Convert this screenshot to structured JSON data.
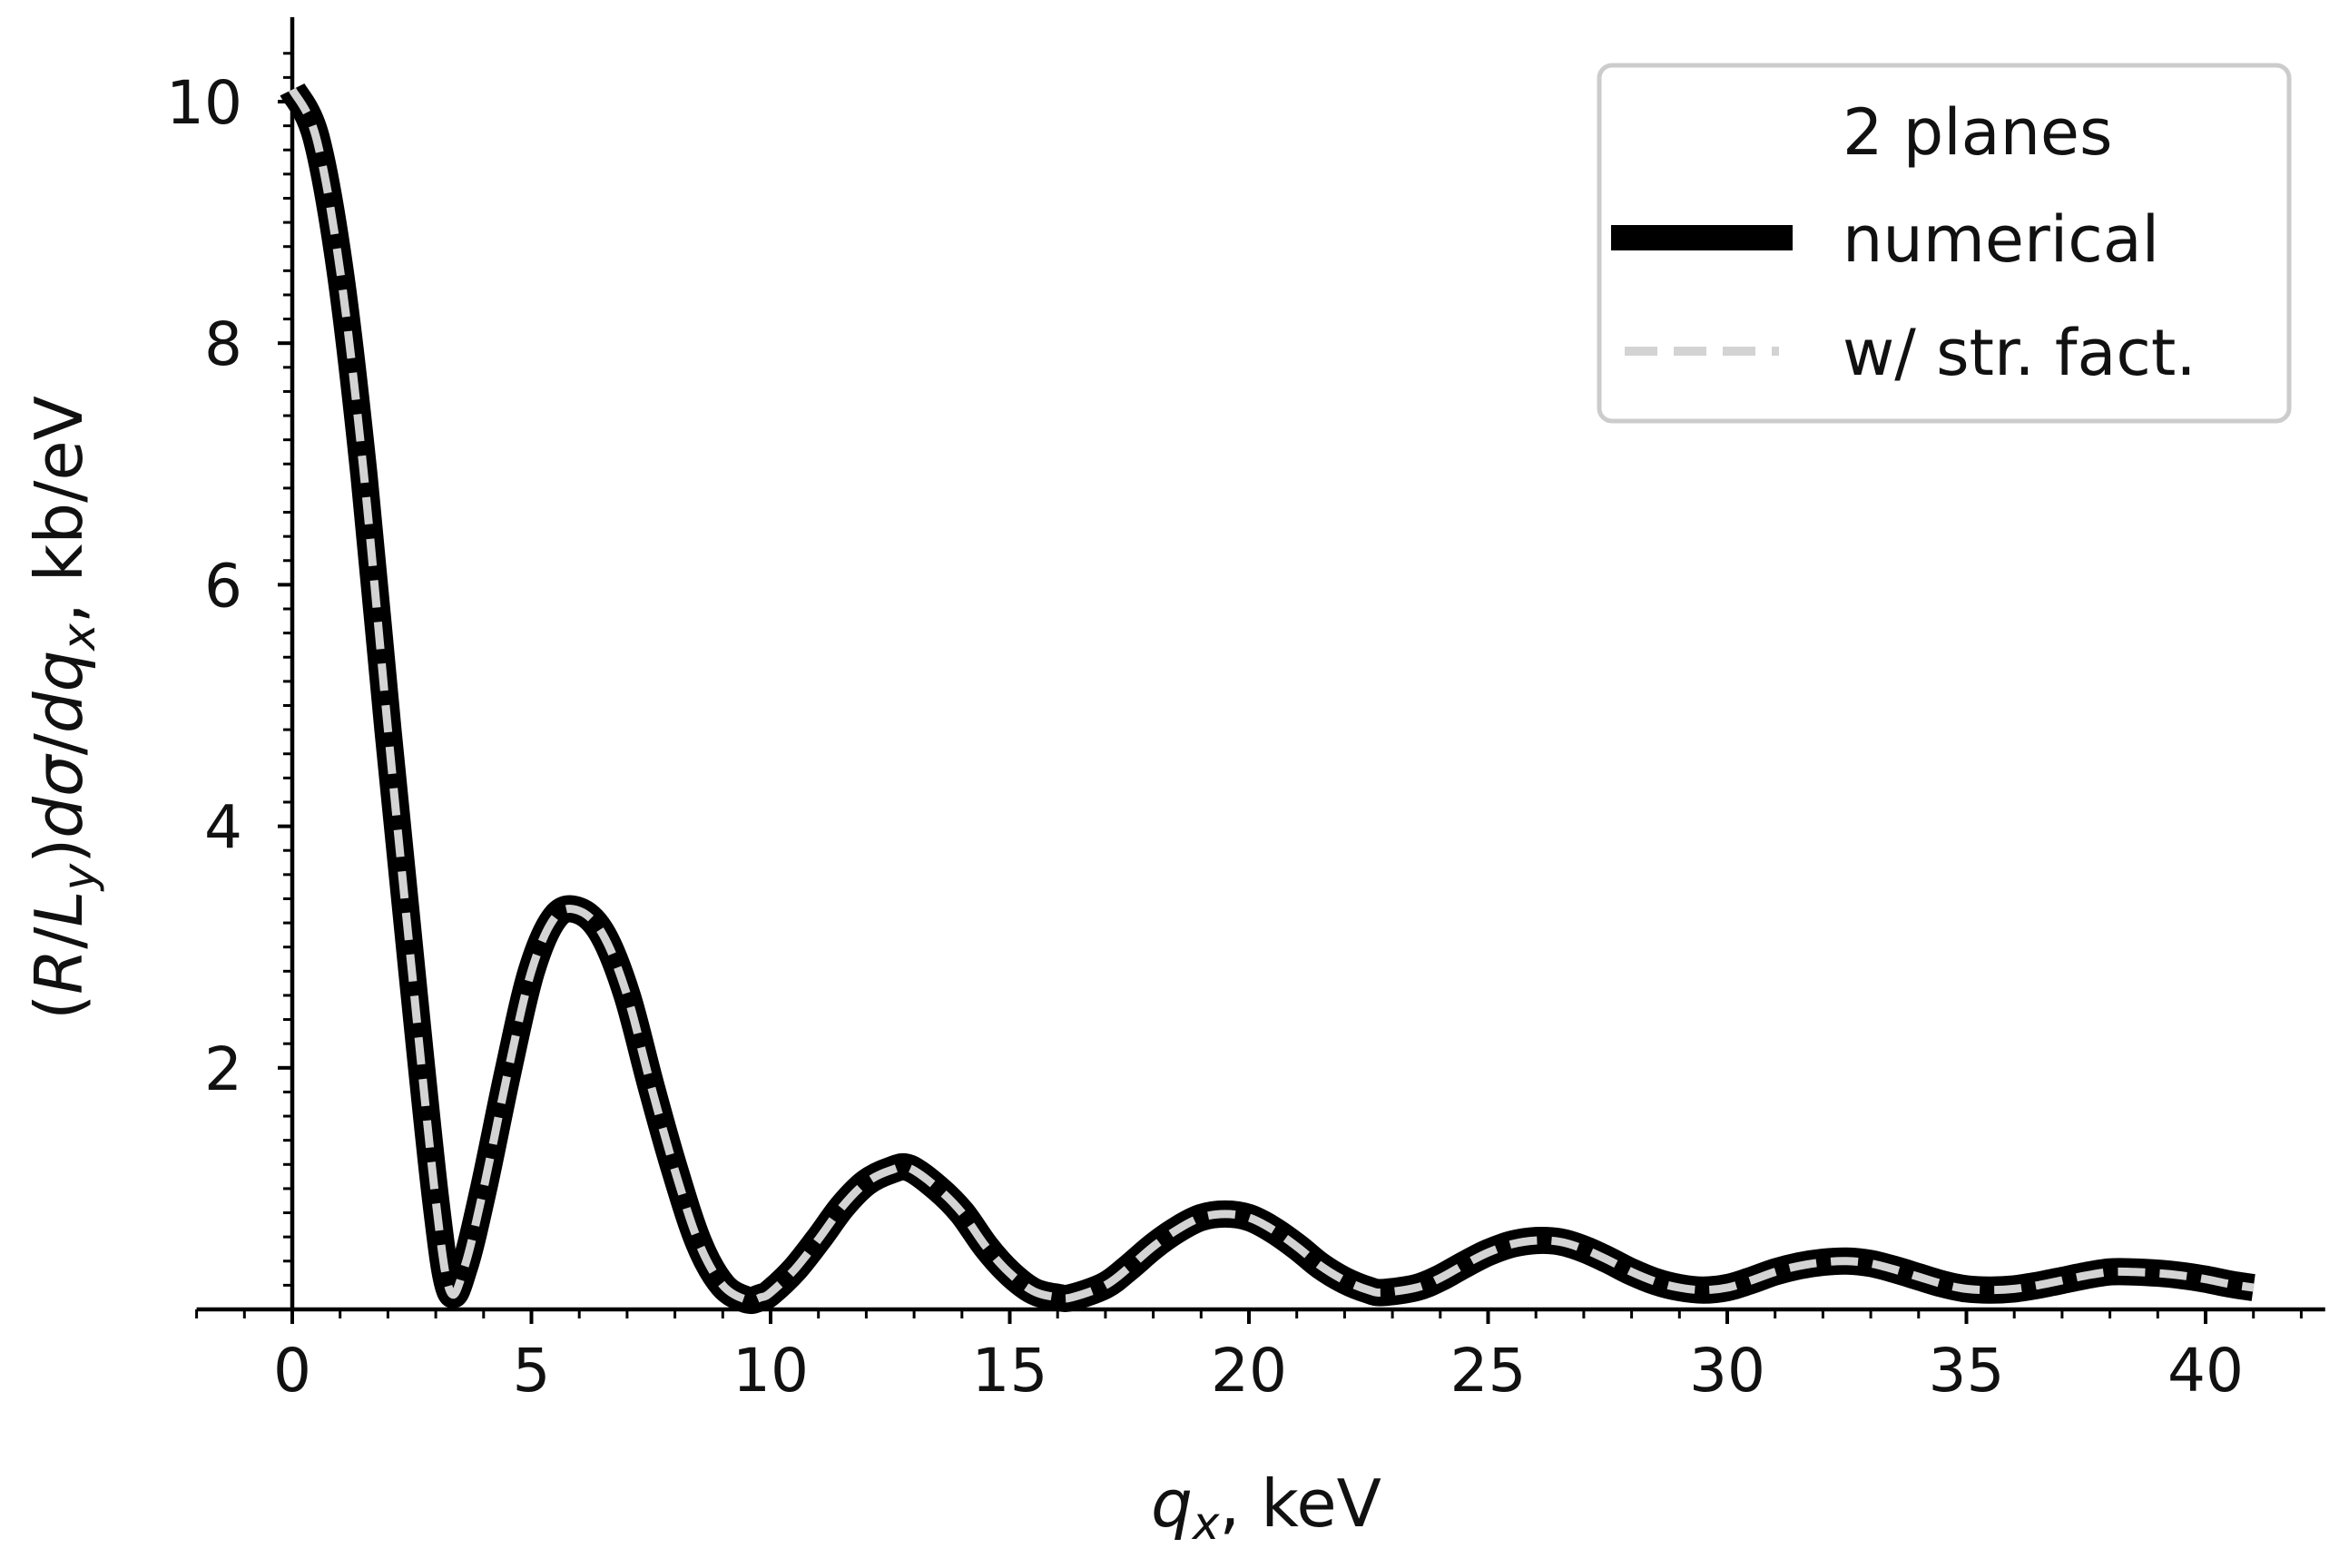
{
  "chart_data": {
    "type": "line",
    "title": "",
    "xlabel": "q_x, keV",
    "ylabel": "(R/L_y)dσ/dq_x, kb/eV",
    "xlim": [
      -2.0,
      42.5
    ],
    "ylim": [
      0,
      10.7
    ],
    "xticks": [
      "0",
      "5",
      "10",
      "15",
      "20",
      "25",
      "30",
      "35",
      "40"
    ],
    "yticks": [
      "2",
      "4",
      "6",
      "8",
      "10"
    ],
    "grid": false,
    "legend": {
      "title": "2 planes",
      "location": "top-right",
      "entries": [
        "numerical",
        "w/ str. fact."
      ]
    },
    "series": [
      {
        "name": "numerical",
        "style": "solid-thick",
        "color": "#000000",
        "x": [
          0,
          0.5,
          1.0,
          1.5,
          2.0,
          2.5,
          3.0,
          3.3,
          3.6,
          4.0,
          4.5,
          5.0,
          5.5,
          6.0,
          6.5,
          7.0,
          7.5,
          8.0,
          8.5,
          9.0,
          9.5,
          9.8,
          10.0,
          10.5,
          11.0,
          11.5,
          12.0,
          12.5,
          12.9,
          13.5,
          14.0,
          14.5,
          15.0,
          15.5,
          16.0,
          16.3,
          17.0,
          17.5,
          18.0,
          18.5,
          19.0,
          19.5,
          20.0,
          20.5,
          21.0,
          21.5,
          22.0,
          22.5,
          22.8,
          23.5,
          24.0,
          24.5,
          25.0,
          25.5,
          26.0,
          26.5,
          27.0,
          27.5,
          28.0,
          28.5,
          29.0,
          29.5,
          30.0,
          30.5,
          31.0,
          31.5,
          32.0,
          32.5,
          33.0,
          33.5,
          34.0,
          34.5,
          35.0,
          35.5,
          36.0,
          36.5,
          37.0,
          37.5,
          38.0,
          38.5,
          39.0,
          39.5,
          40.0,
          40.5,
          41.0
        ],
        "y": [
          10.1,
          9.7,
          8.6,
          6.9,
          4.8,
          2.8,
          0.9,
          0.15,
          0.35,
          1.0,
          1.95,
          2.8,
          3.25,
          3.3,
          3.1,
          2.6,
          1.85,
          1.15,
          0.55,
          0.2,
          0.08,
          0.1,
          0.14,
          0.33,
          0.58,
          0.85,
          1.05,
          1.15,
          1.17,
          1.0,
          0.8,
          0.52,
          0.3,
          0.15,
          0.1,
          0.1,
          0.2,
          0.35,
          0.52,
          0.66,
          0.76,
          0.79,
          0.76,
          0.66,
          0.52,
          0.36,
          0.24,
          0.16,
          0.14,
          0.18,
          0.26,
          0.37,
          0.47,
          0.54,
          0.57,
          0.56,
          0.5,
          0.41,
          0.31,
          0.23,
          0.18,
          0.16,
          0.18,
          0.24,
          0.31,
          0.36,
          0.39,
          0.4,
          0.38,
          0.33,
          0.27,
          0.21,
          0.17,
          0.16,
          0.17,
          0.2,
          0.24,
          0.28,
          0.31,
          0.31,
          0.3,
          0.28,
          0.25,
          0.21,
          0.18
        ]
      },
      {
        "name": "w/ str. fact.",
        "style": "dashed",
        "color": "#d3d3d3",
        "x": [
          0,
          0.5,
          1.0,
          1.5,
          2.0,
          2.5,
          3.0,
          3.3,
          3.6,
          4.0,
          4.5,
          5.0,
          5.5,
          6.0,
          6.5,
          7.0,
          7.5,
          8.0,
          8.5,
          9.0,
          9.5,
          9.8,
          10.0,
          10.5,
          11.0,
          11.5,
          12.0,
          12.5,
          12.9,
          13.5,
          14.0,
          14.5,
          15.0,
          15.5,
          16.0,
          16.3,
          17.0,
          17.5,
          18.0,
          18.5,
          19.0,
          19.5,
          20.0,
          20.5,
          21.0,
          21.5,
          22.0,
          22.5,
          22.8,
          23.5,
          24.0,
          24.5,
          25.0,
          25.5,
          26.0,
          26.5,
          27.0,
          27.5,
          28.0,
          28.5,
          29.0,
          29.5,
          30.0,
          30.5,
          31.0,
          31.5,
          32.0,
          32.5,
          33.0,
          33.5,
          34.0,
          34.5,
          35.0,
          35.5,
          36.0,
          36.5,
          37.0,
          37.5,
          38.0,
          38.5,
          39.0,
          39.5,
          40.0,
          40.5,
          41.0
        ],
        "y": [
          10.1,
          9.7,
          8.6,
          6.9,
          4.8,
          2.8,
          0.9,
          0.15,
          0.35,
          1.0,
          1.95,
          2.8,
          3.25,
          3.3,
          3.1,
          2.6,
          1.85,
          1.15,
          0.55,
          0.2,
          0.08,
          0.1,
          0.14,
          0.33,
          0.58,
          0.85,
          1.05,
          1.15,
          1.17,
          1.0,
          0.8,
          0.52,
          0.3,
          0.15,
          0.1,
          0.1,
          0.2,
          0.35,
          0.52,
          0.66,
          0.76,
          0.79,
          0.76,
          0.66,
          0.52,
          0.36,
          0.24,
          0.16,
          0.14,
          0.18,
          0.26,
          0.37,
          0.47,
          0.54,
          0.57,
          0.56,
          0.5,
          0.41,
          0.31,
          0.23,
          0.18,
          0.16,
          0.18,
          0.24,
          0.31,
          0.36,
          0.39,
          0.4,
          0.38,
          0.33,
          0.27,
          0.21,
          0.17,
          0.16,
          0.17,
          0.2,
          0.24,
          0.28,
          0.31,
          0.31,
          0.3,
          0.28,
          0.25,
          0.21,
          0.18
        ]
      }
    ]
  }
}
